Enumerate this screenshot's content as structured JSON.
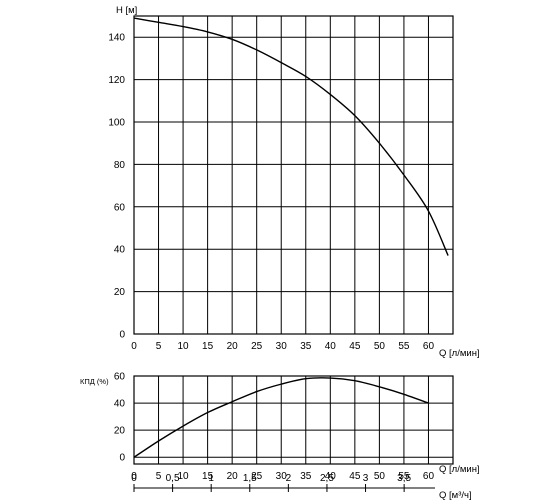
{
  "chart_data": [
    {
      "type": "line",
      "ylabel": "H [м]",
      "xlabel": "Q [л/мин]",
      "xlim": [
        0,
        65
      ],
      "ylim": [
        0,
        150
      ],
      "x_ticks": [
        0,
        5,
        10,
        15,
        20,
        25,
        30,
        35,
        40,
        45,
        50,
        55,
        60
      ],
      "y_ticks": [
        0,
        20,
        40,
        60,
        80,
        100,
        120,
        140
      ],
      "grid": true,
      "series": [
        {
          "x": [
            0,
            5,
            10,
            15,
            20,
            25,
            30,
            35,
            40,
            45,
            50,
            55,
            60,
            64
          ],
          "values": [
            149,
            147,
            145,
            142.5,
            139,
            134,
            128,
            121.5,
            113,
            103,
            90,
            75,
            58,
            37
          ]
        }
      ]
    },
    {
      "type": "line",
      "ylabel": "КПД (%)",
      "xlabel": "Q [л/мин]",
      "xlim": [
        0,
        65
      ],
      "ylim": [
        -5,
        60
      ],
      "x_ticks": [
        0,
        5,
        10,
        15,
        20,
        25,
        30,
        35,
        40,
        45,
        50,
        55,
        60
      ],
      "y_ticks": [
        0,
        20,
        40,
        60
      ],
      "grid": true,
      "series": [
        {
          "x": [
            0,
            5,
            10,
            15,
            20,
            25,
            30,
            35,
            40,
            45,
            50,
            55,
            60
          ],
          "values": [
            0,
            12,
            23,
            33,
            41,
            48.5,
            54,
            58,
            58.5,
            56.5,
            52,
            46.5,
            40
          ]
        }
      ],
      "secondary_x_axis": {
        "label": "Q [м³/ч]",
        "ticks": [
          0,
          0.5,
          1,
          1.5,
          2,
          2.5,
          3,
          3.5
        ],
        "tick_labels": [
          "0",
          "0,5",
          "1",
          "1,5",
          "2",
          "2,5",
          "3",
          "3,5"
        ],
        "range": [
          0,
          3.9
        ]
      }
    }
  ]
}
